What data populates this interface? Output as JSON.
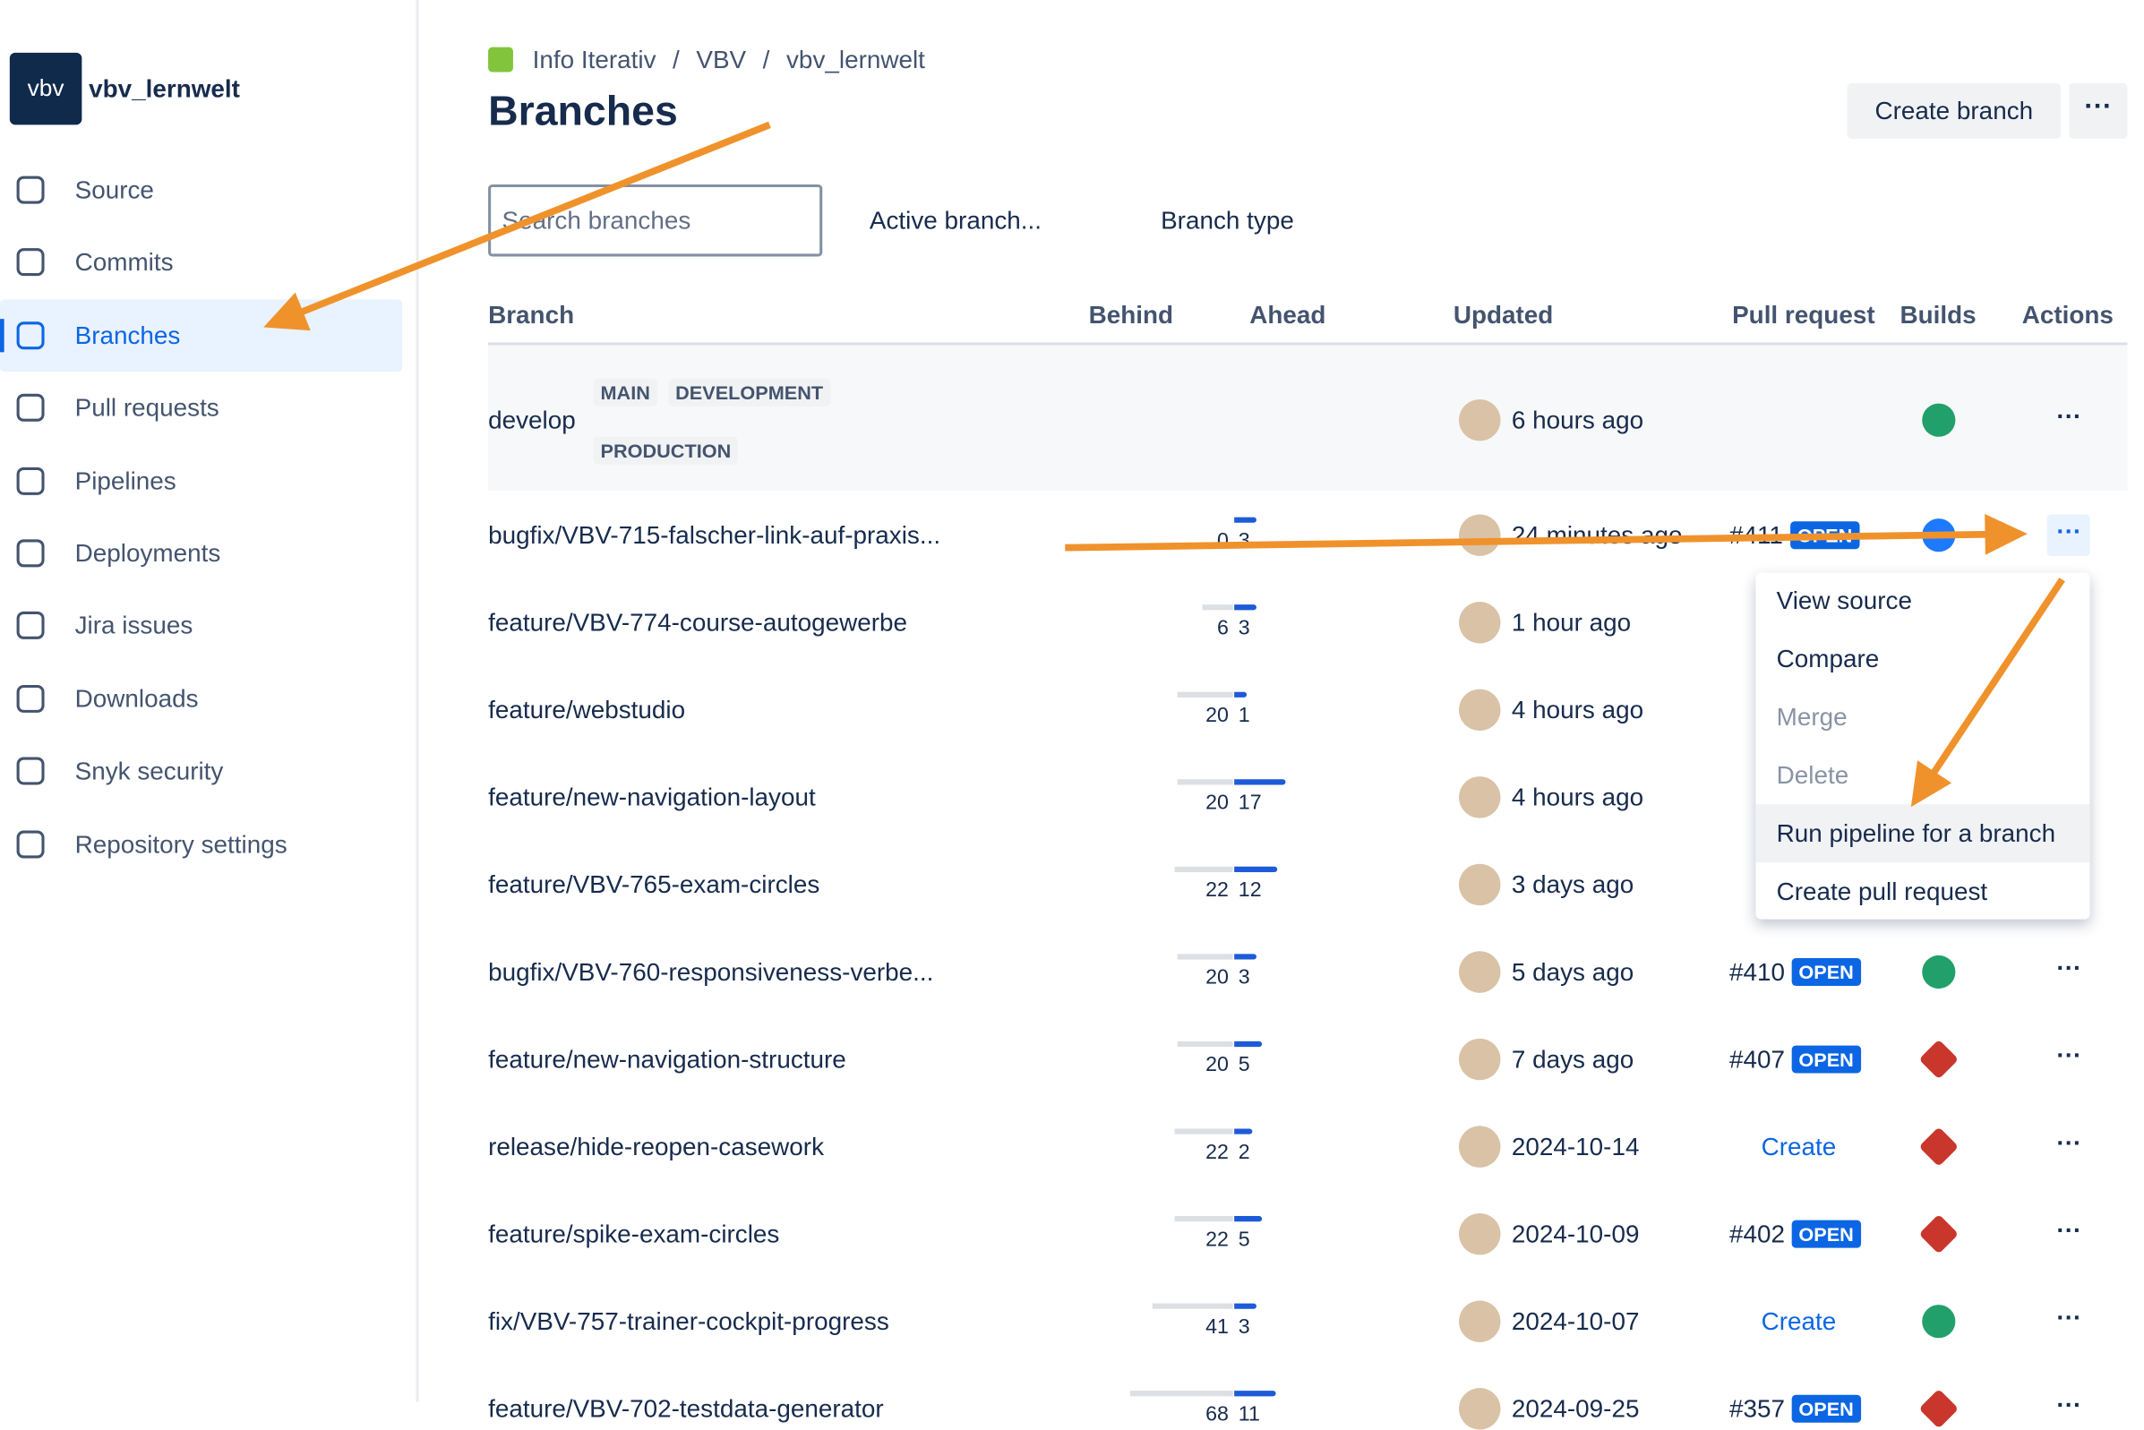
{
  "sidebar": {
    "repo_name": "vbv_lernwelt",
    "logo_text": "vbv",
    "nav": [
      {
        "label": "Source",
        "selected": false
      },
      {
        "label": "Commits",
        "selected": false
      },
      {
        "label": "Branches",
        "selected": true
      },
      {
        "label": "Pull requests",
        "selected": false
      },
      {
        "label": "Pipelines",
        "selected": false
      },
      {
        "label": "Deployments",
        "selected": false
      },
      {
        "label": "Jira issues",
        "selected": false
      },
      {
        "label": "Downloads",
        "selected": false
      },
      {
        "label": "Snyk security",
        "selected": false
      },
      {
        "label": "Repository settings",
        "selected": false
      }
    ]
  },
  "header": {
    "breadcrumb": [
      "Info Iterativ",
      "VBV",
      "vbv_lernwelt"
    ],
    "separator": "/",
    "title": "Branches",
    "create_button": "Create branch"
  },
  "filters": {
    "search_placeholder": "Search branches",
    "active": "Active branch...",
    "type": "Branch type"
  },
  "table": {
    "columns": [
      "Branch",
      "Behind",
      "Ahead",
      "Updated",
      "Pull request",
      "Builds",
      "Actions"
    ],
    "rows": [
      {
        "branch": "develop",
        "tags": [
          "MAIN",
          "DEVELOPMENT",
          "PRODUCTION"
        ],
        "updated": "6 hours ago",
        "build": "success"
      },
      {
        "branch": "bugfix/VBV-715-falscher-link-auf-praxis...",
        "behind": 0,
        "ahead": 3,
        "updated": "24 minutes ago",
        "pr": "#411",
        "pr_status": "OPEN",
        "build": "progress"
      },
      {
        "branch": "feature/VBV-774-course-autogewerbe",
        "behind": 6,
        "ahead": 3,
        "updated": "1 hour ago"
      },
      {
        "branch": "feature/webstudio",
        "behind": 20,
        "ahead": 1,
        "updated": "4 hours ago"
      },
      {
        "branch": "feature/new-navigation-layout",
        "behind": 20,
        "ahead": 17,
        "updated": "4 hours ago"
      },
      {
        "branch": "feature/VBV-765-exam-circles",
        "behind": 22,
        "ahead": 12,
        "updated": "3 days ago"
      },
      {
        "branch": "bugfix/VBV-760-responsiveness-verbe...",
        "behind": 20,
        "ahead": 3,
        "updated": "5 days ago",
        "pr": "#410",
        "pr_status": "OPEN",
        "build": "success"
      },
      {
        "branch": "feature/new-navigation-structure",
        "behind": 20,
        "ahead": 5,
        "updated": "7 days ago",
        "pr": "#407",
        "pr_status": "OPEN",
        "build": "failed"
      },
      {
        "branch": "release/hide-reopen-casework",
        "behind": 22,
        "ahead": 2,
        "updated": "2024-10-14",
        "pr_link": "Create",
        "build": "failed"
      },
      {
        "branch": "feature/spike-exam-circles",
        "behind": 22,
        "ahead": 5,
        "updated": "2024-10-09",
        "pr": "#402",
        "pr_status": "OPEN",
        "build": "failed"
      },
      {
        "branch": "fix/VBV-757-trainer-cockpit-progress",
        "behind": 41,
        "ahead": 3,
        "updated": "2024-10-07",
        "pr_link": "Create",
        "build": "success"
      },
      {
        "branch": "feature/VBV-702-testdata-generator",
        "behind": 68,
        "ahead": 11,
        "updated": "2024-09-25",
        "pr": "#357",
        "pr_status": "OPEN",
        "build": "failed"
      }
    ]
  },
  "menu": {
    "items": [
      {
        "label": "View source",
        "disabled": false
      },
      {
        "label": "Compare",
        "disabled": false
      },
      {
        "label": "Merge",
        "disabled": true
      },
      {
        "label": "Delete",
        "disabled": true
      },
      {
        "label": "Run pipeline for a branch",
        "disabled": false,
        "hover": true
      },
      {
        "label": "Create pull request",
        "disabled": false
      }
    ]
  }
}
